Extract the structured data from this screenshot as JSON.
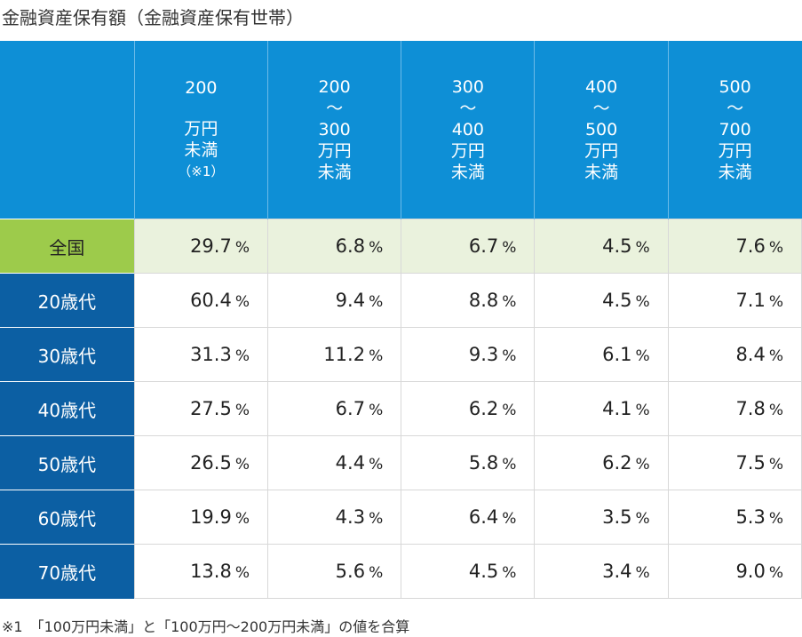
{
  "title": "金融資産保有額（金融資産保有世帯）",
  "headers": [
    {
      "lines": [
        ""
      ],
      "note": ""
    },
    {
      "lines": [
        "200",
        "",
        "万円",
        "未満"
      ],
      "note": "（※1）"
    },
    {
      "lines": [
        "200",
        "〜",
        "300",
        "万円",
        "未満"
      ],
      "note": ""
    },
    {
      "lines": [
        "300",
        "〜",
        "400",
        "万円",
        "未満"
      ],
      "note": ""
    },
    {
      "lines": [
        "400",
        "〜",
        "500",
        "万円",
        "未満"
      ],
      "note": ""
    },
    {
      "lines": [
        "500",
        "〜",
        "700",
        "万円",
        "未満"
      ],
      "note": ""
    }
  ],
  "unit": "%",
  "rows": [
    {
      "label": "全国",
      "values": [
        "29.7",
        "6.8",
        "6.7",
        "4.5",
        "7.6"
      ]
    },
    {
      "label": "20歳代",
      "values": [
        "60.4",
        "9.4",
        "8.8",
        "4.5",
        "7.1"
      ]
    },
    {
      "label": "30歳代",
      "values": [
        "31.3",
        "11.2",
        "9.3",
        "6.1",
        "8.4"
      ]
    },
    {
      "label": "40歳代",
      "values": [
        "27.5",
        "6.7",
        "6.2",
        "4.1",
        "7.8"
      ]
    },
    {
      "label": "50歳代",
      "values": [
        "26.5",
        "4.4",
        "5.8",
        "6.2",
        "7.5"
      ]
    },
    {
      "label": "60歳代",
      "values": [
        "19.9",
        "4.3",
        "6.4",
        "3.5",
        "5.3"
      ]
    },
    {
      "label": "70歳代",
      "values": [
        "13.8",
        "5.6",
        "4.5",
        "3.4",
        "9.0"
      ]
    }
  ],
  "footnote": "※1　「100万円未満」と「100万円〜200万円未満」の値を合算"
}
